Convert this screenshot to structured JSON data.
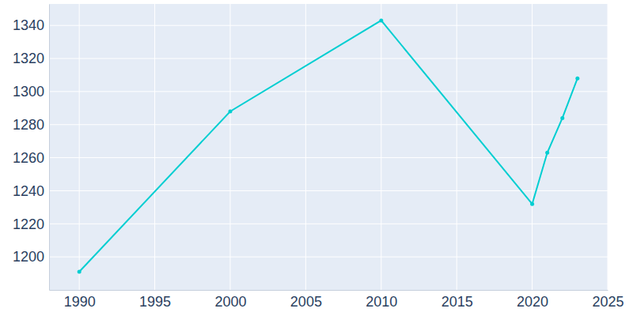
{
  "chart_data": {
    "type": "line",
    "x": [
      1990,
      2000,
      2010,
      2020,
      2021,
      2022,
      2023
    ],
    "values": [
      1191,
      1288,
      1343,
      1232,
      1263,
      1284,
      1308
    ],
    "color": "#00ced1",
    "marker": "circle",
    "xlim": [
      1988,
      2025
    ],
    "xticks": [
      1990,
      1995,
      2000,
      2005,
      2010,
      2015,
      2020,
      2025
    ],
    "ylim": [
      1180,
      1353
    ],
    "yticks": [
      1200,
      1220,
      1240,
      1260,
      1280,
      1300,
      1320,
      1340
    ],
    "grid": true
  }
}
